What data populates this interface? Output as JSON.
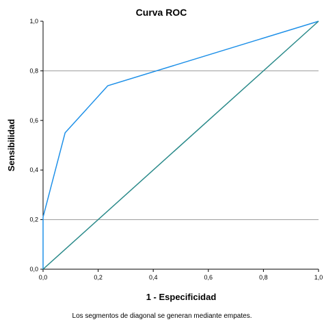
{
  "chart_data": {
    "type": "line",
    "title": "Curva ROC",
    "xlabel": "1 - Especificidad",
    "ylabel": "Sensibilidad",
    "xlim": [
      0,
      1
    ],
    "ylim": [
      0,
      1
    ],
    "xticks": [
      "0,0",
      "0,2",
      "0,4",
      "0,6",
      "0,8",
      "1,0"
    ],
    "yticks": [
      "0,0",
      "0,2",
      "0,4",
      "0,6",
      "0,8",
      "1,0"
    ],
    "gridlines_y": [
      0.2,
      0.8
    ],
    "series": [
      {
        "color": "#1e90e8",
        "x": [
          0.0,
          0.0,
          0.08,
          0.235,
          1.0
        ],
        "y": [
          0.0,
          0.21,
          0.55,
          0.74,
          1.0
        ]
      },
      {
        "color": "#2a8a8a",
        "x": [
          0.0,
          1.0
        ],
        "y": [
          0.0,
          1.0
        ]
      }
    ],
    "footnote": "Los segmentos de diagonal se generan mediante empates."
  }
}
